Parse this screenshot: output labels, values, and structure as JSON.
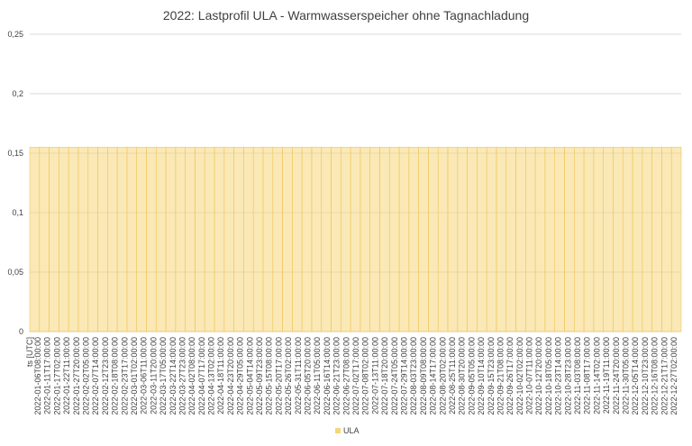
{
  "chart_data": {
    "type": "bar",
    "title": "2022: Lastprofil ULA - Warmwasserspeicher ohne Tagnachladung",
    "xlabel": "",
    "ylabel": "",
    "ylim": [
      0,
      0.25
    ],
    "yticks": [
      "0",
      "0,05",
      "0,1",
      "0,15",
      "0,2",
      "0,25"
    ],
    "ytick_values": [
      0,
      0.05,
      0.1,
      0.15,
      0.2,
      0.25
    ],
    "x_first_label": "ts [UTC]",
    "x_tick_labels": [
      "2022-01-06T08:00:00",
      "2022-01-11T17:00:00",
      "2022-01-17T02:00:00",
      "2022-01-22T11:00:00",
      "2022-01-27T20:00:00",
      "2022-02-02T05:00:00",
      "2022-02-07T14:00:00",
      "2022-02-12T23:00:00",
      "2022-02-18T08:00:00",
      "2022-02-23T17:00:00",
      "2022-03-01T02:00:00",
      "2022-03-06T11:00:00",
      "2022-03-11T20:00:00",
      "2022-03-17T05:00:00",
      "2022-03-22T14:00:00",
      "2022-03-27T23:00:00",
      "2022-04-02T08:00:00",
      "2022-04-07T17:00:00",
      "2022-04-13T02:00:00",
      "2022-04-18T11:00:00",
      "2022-04-23T20:00:00",
      "2022-04-29T05:00:00",
      "2022-05-04T14:00:00",
      "2022-05-09T23:00:00",
      "2022-05-15T08:00:00",
      "2022-05-20T17:00:00",
      "2022-05-26T02:00:00",
      "2022-05-31T11:00:00",
      "2022-06-05T20:00:00",
      "2022-06-11T05:00:00",
      "2022-06-16T14:00:00",
      "2022-06-21T23:00:00",
      "2022-06-27T08:00:00",
      "2022-07-02T17:00:00",
      "2022-07-08T02:00:00",
      "2022-07-13T11:00:00",
      "2022-07-18T20:00:00",
      "2022-07-24T05:00:00",
      "2022-07-29T14:00:00",
      "2022-08-03T23:00:00",
      "2022-08-09T08:00:00",
      "2022-08-14T17:00:00",
      "2022-08-20T02:00:00",
      "2022-08-25T11:00:00",
      "2022-08-30T20:00:00",
      "2022-09-05T05:00:00",
      "2022-09-10T14:00:00",
      "2022-09-15T23:00:00",
      "2022-09-21T08:00:00",
      "2022-09-26T17:00:00",
      "2022-10-02T02:00:00",
      "2022-10-07T11:00:00",
      "2022-10-12T20:00:00",
      "2022-10-18T05:00:00",
      "2022-10-23T14:00:00",
      "2022-10-28T23:00:00",
      "2022-11-03T08:00:00",
      "2022-11-08T17:00:00",
      "2022-11-14T02:00:00",
      "2022-11-19T11:00:00",
      "2022-11-24T20:00:00",
      "2022-11-30T05:00:00",
      "2022-12-05T14:00:00",
      "2022-12-10T23:00:00",
      "2022-12-16T08:00:00",
      "2022-12-21T17:00:00",
      "2022-12-27T02:00:00"
    ],
    "series": [
      {
        "name": "ULA",
        "color": "#f5d77a",
        "values": [
          0.155,
          0.155,
          0.155,
          0.155,
          0.155,
          0.155,
          0.155,
          0.155,
          0.155,
          0.155,
          0.155,
          0.155,
          0.155,
          0.155,
          0.155,
          0.155,
          0.155,
          0.155,
          0.155,
          0.155,
          0.155,
          0.155,
          0.155,
          0.155,
          0.155,
          0.155,
          0.155,
          0.155,
          0.155,
          0.155,
          0.155,
          0.155,
          0.155,
          0.155,
          0.155,
          0.155,
          0.155,
          0.155,
          0.155,
          0.155,
          0.155,
          0.155,
          0.155,
          0.155,
          0.155,
          0.155,
          0.155,
          0.155,
          0.155,
          0.155,
          0.155,
          0.155,
          0.155,
          0.155,
          0.155,
          0.155,
          0.155,
          0.155,
          0.155,
          0.155,
          0.155,
          0.155,
          0.155,
          0.155,
          0.155,
          0.155,
          0.155
        ]
      }
    ],
    "grid": true,
    "legend": "bottom-center",
    "colors": {
      "grid": "#d9d9d9",
      "text": "#404040",
      "bar_stroke": "#efc65a"
    }
  }
}
